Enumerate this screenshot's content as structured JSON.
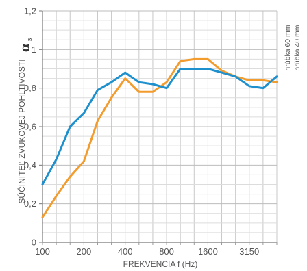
{
  "chart_data": {
    "type": "line",
    "xlabel": "FREKVENCIA f (Hz)",
    "ylabel": "SÚČINITEĽ ZVUKOVEJ POHLTIVOSTI",
    "ylabel_symbol": "α",
    "ylabel_subscript": "s",
    "x": [
      "100",
      "125",
      "160",
      "200",
      "250",
      "315",
      "400",
      "500",
      "630",
      "800",
      "1000",
      "1250",
      "1600",
      "2000",
      "2500",
      "3150",
      "4000",
      "5000"
    ],
    "x_tick_labels": [
      "100",
      "200",
      "400",
      "800",
      "1600",
      "3150"
    ],
    "y_ticks": [
      "0",
      "0,2",
      "0,4",
      "0,6",
      "0,8",
      "1",
      "1,2"
    ],
    "ylim": [
      0,
      1.2
    ],
    "grid": true,
    "legend_position": "right-vertical",
    "series": [
      {
        "name": "hrúbka 60 mm",
        "color": "#1e90cd",
        "values": [
          0.3,
          0.43,
          0.6,
          0.67,
          0.79,
          0.83,
          0.88,
          0.83,
          0.82,
          0.8,
          0.9,
          0.9,
          0.9,
          0.88,
          0.86,
          0.81,
          0.8,
          0.86
        ]
      },
      {
        "name": "hrúbka 40 mm",
        "color": "#f39c2e",
        "values": [
          0.13,
          0.24,
          0.34,
          0.42,
          0.63,
          0.75,
          0.85,
          0.78,
          0.78,
          0.83,
          0.94,
          0.95,
          0.95,
          0.89,
          0.86,
          0.84,
          0.84,
          0.83
        ]
      }
    ]
  }
}
